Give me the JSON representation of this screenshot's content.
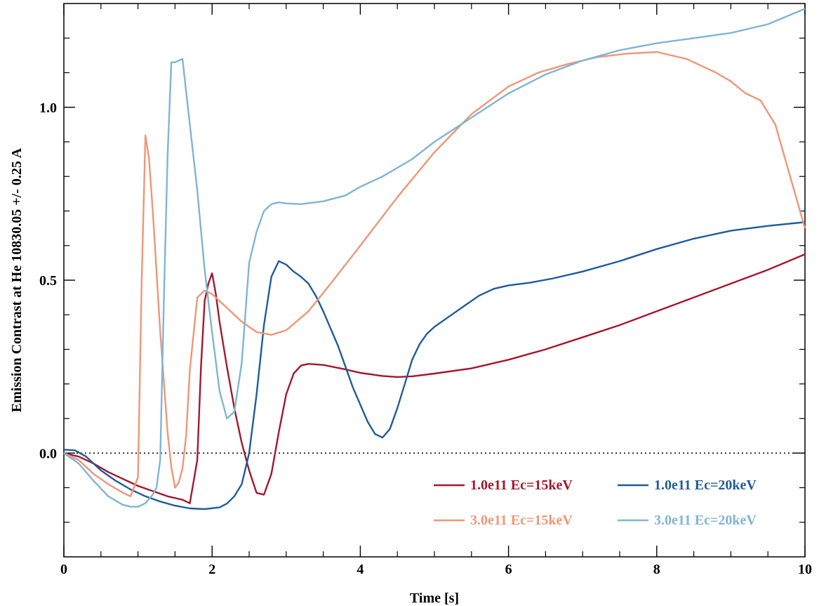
{
  "chart_data": {
    "type": "line",
    "title": "",
    "xlabel": "Time [s]",
    "ylabel": "Emission Contrast at He 10830.05 +/- 0.25 A",
    "xlim": [
      0,
      10
    ],
    "ylim": [
      -0.3,
      1.3
    ],
    "x_ticks": [
      0,
      2,
      4,
      6,
      8,
      10
    ],
    "x_tick_labels": [
      "0",
      "2",
      "4",
      "6",
      "8",
      "10"
    ],
    "y_ticks": [
      0.0,
      0.5,
      1.0
    ],
    "y_tick_labels": [
      "0.0",
      "0.5",
      "1.0"
    ],
    "grid": false,
    "zero_reference_line": {
      "y": 0,
      "style": "dotted",
      "color": "#000000"
    },
    "legend_position": "bottom-right",
    "series": [
      {
        "name": "1.0e11 Ec=15keV",
        "color": "#a3172d",
        "x": [
          0,
          0.2,
          0.4,
          0.6,
          0.8,
          1.0,
          1.2,
          1.4,
          1.6,
          1.7,
          1.8,
          1.85,
          1.9,
          1.95,
          2.0,
          2.05,
          2.1,
          2.2,
          2.3,
          2.4,
          2.5,
          2.6,
          2.7,
          2.8,
          2.9,
          3.0,
          3.1,
          3.2,
          3.3,
          3.5,
          3.8,
          4.0,
          4.3,
          4.5,
          4.7,
          5.0,
          5.5,
          6.0,
          6.5,
          7.0,
          7.5,
          8.0,
          8.5,
          9.0,
          9.5,
          10.0
        ],
        "values": [
          0.0,
          -0.01,
          -0.03,
          -0.055,
          -0.075,
          -0.095,
          -0.11,
          -0.125,
          -0.135,
          -0.145,
          -0.02,
          0.25,
          0.44,
          0.49,
          0.52,
          0.46,
          0.38,
          0.25,
          0.13,
          0.03,
          -0.05,
          -0.115,
          -0.12,
          -0.06,
          0.06,
          0.17,
          0.23,
          0.253,
          0.258,
          0.255,
          0.242,
          0.232,
          0.223,
          0.22,
          0.222,
          0.23,
          0.245,
          0.27,
          0.3,
          0.335,
          0.37,
          0.41,
          0.45,
          0.49,
          0.53,
          0.575
        ]
      },
      {
        "name": "1.0e11 Ec=20keV",
        "color": "#1f5c9a",
        "x": [
          0,
          0.15,
          0.3,
          0.5,
          0.7,
          0.9,
          1.1,
          1.3,
          1.5,
          1.7,
          1.9,
          2.1,
          2.2,
          2.3,
          2.4,
          2.5,
          2.6,
          2.7,
          2.8,
          2.9,
          3.0,
          3.1,
          3.2,
          3.3,
          3.4,
          3.5,
          3.7,
          3.9,
          4.1,
          4.2,
          4.3,
          4.4,
          4.5,
          4.6,
          4.7,
          4.8,
          4.9,
          5.0,
          5.2,
          5.4,
          5.6,
          5.8,
          6.0,
          6.3,
          6.6,
          7.0,
          7.5,
          8.0,
          8.5,
          9.0,
          9.5,
          10.0
        ],
        "values": [
          0.01,
          0.008,
          -0.01,
          -0.05,
          -0.08,
          -0.105,
          -0.125,
          -0.14,
          -0.152,
          -0.16,
          -0.162,
          -0.157,
          -0.146,
          -0.125,
          -0.09,
          0.0,
          0.17,
          0.37,
          0.51,
          0.555,
          0.545,
          0.525,
          0.51,
          0.49,
          0.455,
          0.41,
          0.31,
          0.19,
          0.09,
          0.055,
          0.045,
          0.07,
          0.13,
          0.2,
          0.27,
          0.315,
          0.345,
          0.365,
          0.395,
          0.425,
          0.455,
          0.475,
          0.485,
          0.493,
          0.505,
          0.525,
          0.555,
          0.59,
          0.62,
          0.643,
          0.657,
          0.668
        ]
      },
      {
        "name": "3.0e11 Ec=15keV",
        "color": "#ef9676",
        "x": [
          0,
          0.2,
          0.4,
          0.6,
          0.8,
          0.9,
          1.0,
          1.05,
          1.1,
          1.15,
          1.2,
          1.3,
          1.4,
          1.45,
          1.5,
          1.55,
          1.6,
          1.65,
          1.7,
          1.8,
          1.9,
          2.0,
          2.2,
          2.4,
          2.6,
          2.8,
          3.0,
          3.3,
          3.6,
          4.0,
          4.5,
          5.0,
          5.5,
          6.0,
          6.4,
          6.8,
          7.2,
          7.6,
          8.0,
          8.4,
          8.8,
          9.0,
          9.2,
          9.4,
          9.6,
          9.8,
          10.0
        ],
        "values": [
          0.0,
          -0.02,
          -0.06,
          -0.09,
          -0.115,
          -0.125,
          -0.07,
          0.5,
          0.918,
          0.85,
          0.7,
          0.35,
          0.06,
          -0.04,
          -0.1,
          -0.085,
          -0.045,
          0.05,
          0.24,
          0.45,
          0.47,
          0.46,
          0.42,
          0.38,
          0.35,
          0.342,
          0.355,
          0.41,
          0.49,
          0.6,
          0.74,
          0.87,
          0.98,
          1.06,
          1.1,
          1.125,
          1.145,
          1.155,
          1.16,
          1.14,
          1.1,
          1.075,
          1.04,
          1.02,
          0.95,
          0.8,
          0.65
        ]
      },
      {
        "name": "3.0e11 Ec=20keV",
        "color": "#7fb5d5",
        "x": [
          0,
          0.2,
          0.4,
          0.6,
          0.8,
          0.9,
          1.0,
          1.1,
          1.2,
          1.25,
          1.3,
          1.35,
          1.4,
          1.45,
          1.5,
          1.6,
          1.7,
          1.8,
          1.9,
          2.0,
          2.1,
          2.2,
          2.3,
          2.4,
          2.5,
          2.6,
          2.7,
          2.8,
          2.9,
          3.0,
          3.2,
          3.5,
          3.8,
          4.0,
          4.3,
          4.7,
          5.0,
          5.5,
          6.0,
          6.5,
          7.0,
          7.5,
          8.0,
          8.5,
          9.0,
          9.5,
          10.0
        ],
        "values": [
          0.0,
          -0.03,
          -0.08,
          -0.125,
          -0.15,
          -0.155,
          -0.155,
          -0.145,
          -0.12,
          -0.1,
          -0.02,
          0.45,
          0.86,
          1.13,
          1.13,
          1.14,
          0.95,
          0.76,
          0.53,
          0.35,
          0.18,
          0.1,
          0.12,
          0.26,
          0.55,
          0.64,
          0.7,
          0.72,
          0.725,
          0.722,
          0.72,
          0.728,
          0.745,
          0.77,
          0.8,
          0.85,
          0.9,
          0.97,
          1.04,
          1.095,
          1.135,
          1.165,
          1.185,
          1.2,
          1.215,
          1.24,
          1.285
        ]
      }
    ]
  }
}
